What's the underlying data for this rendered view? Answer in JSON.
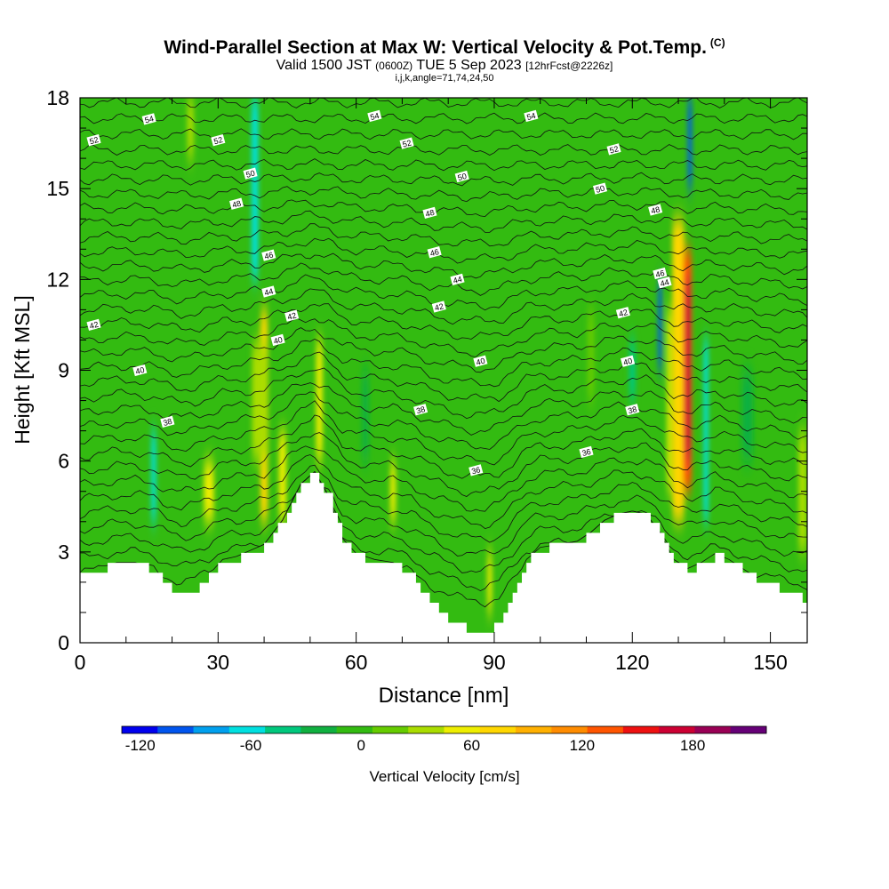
{
  "header": {
    "title": "Wind-Parallel Section at Max W: Vertical Velocity & Pot.Temp.",
    "title_mark": "(C)",
    "valid_prefix": "Valid 1500 JST",
    "valid_zulu": "(0600Z)",
    "valid_date": "TUE 5 Sep 2023",
    "forecast_info": "[12hrFcst@2226z]",
    "indices": "i,j,k,angle=71,74,24,50"
  },
  "chart_data": {
    "type": "heatmap",
    "xlabel": "Distance [nm]",
    "ylabel": "Height [Kft MSL]",
    "xlim": [
      0,
      158
    ],
    "ylim": [
      0,
      18
    ],
    "x_ticks": [
      0,
      30,
      60,
      90,
      120,
      150
    ],
    "y_ticks": [
      0,
      3,
      6,
      9,
      12,
      15,
      18
    ],
    "colorbar": {
      "label": "Vertical Velocity [cm/s]",
      "ticks": [
        -120,
        -60,
        0,
        60,
        120,
        180
      ],
      "min": -130,
      "max": 220,
      "colors": [
        "#0000ee",
        "#0055ee",
        "#00a0ee",
        "#00e0e0",
        "#00c87d",
        "#10b040",
        "#33bb11",
        "#66cc00",
        "#aadd00",
        "#eeee00",
        "#ffd700",
        "#ffb000",
        "#ff8c00",
        "#ff5500",
        "#ee1111",
        "#cc0033",
        "#990055",
        "#660077"
      ]
    },
    "terrain_kft": [
      [
        0,
        2.2
      ],
      [
        4,
        2.4
      ],
      [
        8,
        2.6
      ],
      [
        12,
        2.6
      ],
      [
        16,
        2.4
      ],
      [
        19,
        1.9
      ],
      [
        22,
        1.6
      ],
      [
        25,
        1.8
      ],
      [
        28,
        2.2
      ],
      [
        31,
        2.7
      ],
      [
        34,
        2.8
      ],
      [
        37,
        3.0
      ],
      [
        40,
        3.2
      ],
      [
        44,
        4.0
      ],
      [
        48,
        5.2
      ],
      [
        51,
        5.6
      ],
      [
        54,
        4.8
      ],
      [
        57,
        3.4
      ],
      [
        60,
        2.9
      ],
      [
        64,
        2.7
      ],
      [
        68,
        2.6
      ],
      [
        72,
        2.2
      ],
      [
        76,
        1.4
      ],
      [
        80,
        0.8
      ],
      [
        84,
        0.4
      ],
      [
        88,
        0.3
      ],
      [
        91,
        0.6
      ],
      [
        94,
        1.6
      ],
      [
        97,
        2.7
      ],
      [
        100,
        3.1
      ],
      [
        104,
        3.2
      ],
      [
        108,
        3.3
      ],
      [
        111,
        3.6
      ],
      [
        114,
        4.0
      ],
      [
        117,
        4.2
      ],
      [
        120,
        4.3
      ],
      [
        123,
        4.2
      ],
      [
        126,
        3.6
      ],
      [
        129,
        2.7
      ],
      [
        132,
        2.4
      ],
      [
        135,
        2.6
      ],
      [
        138,
        2.9
      ],
      [
        141,
        2.7
      ],
      [
        144,
        2.4
      ],
      [
        147,
        2.1
      ],
      [
        150,
        1.9
      ],
      [
        154,
        1.6
      ],
      [
        158,
        1.4
      ]
    ],
    "cells": [
      {
        "x": 40,
        "y0": 4,
        "y1": 11,
        "w": 1.6,
        "v": 70
      },
      {
        "x": 39,
        "y0": 6,
        "y1": 10,
        "w": 3.2,
        "v": 30
      },
      {
        "x": 52,
        "y0": 6,
        "y1": 10,
        "w": 1.4,
        "v": 55
      },
      {
        "x": 68,
        "y0": 4,
        "y1": 6,
        "w": 1.2,
        "v": 60
      },
      {
        "x": 28,
        "y0": 4,
        "y1": 6,
        "w": 2.2,
        "v": 55
      },
      {
        "x": 44,
        "y0": 4,
        "y1": 7,
        "w": 1.6,
        "v": 45
      },
      {
        "x": 89,
        "y0": 1,
        "y1": 3,
        "w": 1.0,
        "v": 55
      },
      {
        "x": 111,
        "y0": 8,
        "y1": 11,
        "w": 1.4,
        "v": 25
      },
      {
        "x": 130,
        "y0": 4,
        "y1": 14,
        "w": 2.6,
        "v": 70
      },
      {
        "x": 132,
        "y0": 5,
        "y1": 13,
        "w": 1.9,
        "v": 125
      },
      {
        "x": 132,
        "y0": 6,
        "y1": 12,
        "w": 1.2,
        "v": 175
      },
      {
        "x": 128,
        "y0": 5,
        "y1": 11,
        "w": 0.9,
        "v": 45
      },
      {
        "x": 157,
        "y0": 3,
        "y1": 7,
        "w": 1.8,
        "v": 40
      },
      {
        "x": 126,
        "y0": 9,
        "y1": 12,
        "w": 0.8,
        "v": -110
      },
      {
        "x": 132.5,
        "y0": 15,
        "y1": 18,
        "w": 0.9,
        "v": -100
      },
      {
        "x": 38,
        "y0": 12,
        "y1": 18,
        "w": 1.4,
        "v": -55
      },
      {
        "x": 16,
        "y0": 4,
        "y1": 7,
        "w": 1.0,
        "v": -55
      },
      {
        "x": 136,
        "y0": 4,
        "y1": 10,
        "w": 1.0,
        "v": -55
      },
      {
        "x": 120,
        "y0": 8,
        "y1": 10,
        "w": 1.4,
        "v": -40
      },
      {
        "x": 62,
        "y0": 6,
        "y1": 9,
        "w": 1.4,
        "v": -30
      },
      {
        "x": 24,
        "y0": 16,
        "y1": 18,
        "w": 1.4,
        "v": 30
      },
      {
        "x": 145,
        "y0": 6,
        "y1": 9,
        "w": 2.5,
        "v": -30
      }
    ],
    "theta_labels": [
      {
        "text": "54",
        "x": 15,
        "y": 17.3
      },
      {
        "text": "54",
        "x": 64,
        "y": 17.4
      },
      {
        "text": "54",
        "x": 98,
        "y": 17.4
      },
      {
        "text": "52",
        "x": 3,
        "y": 16.6
      },
      {
        "text": "52",
        "x": 30,
        "y": 16.6
      },
      {
        "text": "52",
        "x": 71,
        "y": 16.5
      },
      {
        "text": "52",
        "x": 116,
        "y": 16.3
      },
      {
        "text": "50",
        "x": 37,
        "y": 15.5
      },
      {
        "text": "50",
        "x": 83,
        "y": 15.4
      },
      {
        "text": "50",
        "x": 113,
        "y": 15.0
      },
      {
        "text": "48",
        "x": 34,
        "y": 14.5
      },
      {
        "text": "48",
        "x": 76,
        "y": 14.2
      },
      {
        "text": "48",
        "x": 125,
        "y": 14.3
      },
      {
        "text": "46",
        "x": 41,
        "y": 12.8
      },
      {
        "text": "46",
        "x": 77,
        "y": 12.9
      },
      {
        "text": "46",
        "x": 126,
        "y": 12.2
      },
      {
        "text": "44",
        "x": 41,
        "y": 11.6
      },
      {
        "text": "44",
        "x": 82,
        "y": 12.0
      },
      {
        "text": "44",
        "x": 127,
        "y": 11.9
      },
      {
        "text": "42",
        "x": 3,
        "y": 10.5
      },
      {
        "text": "42",
        "x": 46,
        "y": 10.8
      },
      {
        "text": "42",
        "x": 78,
        "y": 11.1
      },
      {
        "text": "42",
        "x": 118,
        "y": 10.9
      },
      {
        "text": "40",
        "x": 13,
        "y": 9.0
      },
      {
        "text": "40",
        "x": 43,
        "y": 10.0
      },
      {
        "text": "40",
        "x": 87,
        "y": 9.3
      },
      {
        "text": "40",
        "x": 119,
        "y": 9.3
      },
      {
        "text": "38",
        "x": 19,
        "y": 7.3
      },
      {
        "text": "38",
        "x": 74,
        "y": 7.7
      },
      {
        "text": "38",
        "x": 120,
        "y": 7.7
      },
      {
        "text": "36",
        "x": 86,
        "y": 5.7
      },
      {
        "text": "36",
        "x": 110,
        "y": 6.3
      }
    ]
  }
}
